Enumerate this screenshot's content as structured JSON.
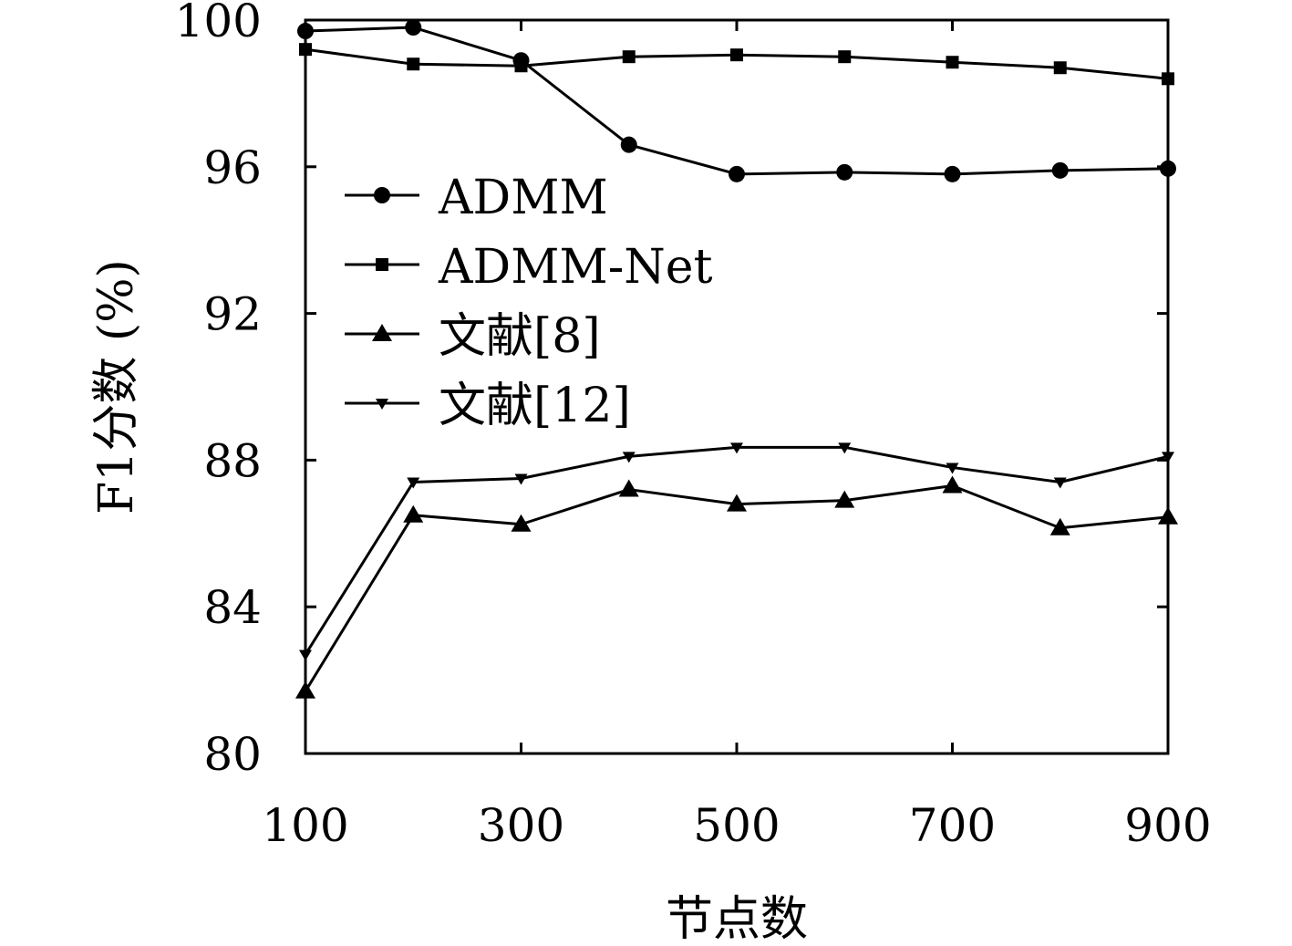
{
  "chart_data": {
    "type": "line",
    "title": "",
    "xlabel": "节点数",
    "ylabel": "F1分数 (%)",
    "xlim": [
      100,
      900
    ],
    "ylim": [
      80,
      100
    ],
    "xticks": [
      100,
      300,
      500,
      700,
      900
    ],
    "yticks": [
      80,
      84,
      88,
      92,
      96,
      100
    ],
    "grid": false,
    "legend_position": "center-left",
    "x": [
      100,
      200,
      300,
      400,
      500,
      600,
      700,
      800,
      900
    ],
    "series": [
      {
        "name": "ADMM",
        "marker": "circle",
        "values": [
          99.7,
          99.8,
          98.9,
          96.6,
          95.8,
          95.85,
          95.8,
          95.9,
          95.95
        ]
      },
      {
        "name": "ADMM-Net",
        "marker": "square",
        "values": [
          99.2,
          98.8,
          98.75,
          99.0,
          99.05,
          99.0,
          98.85,
          98.7,
          98.4
        ]
      },
      {
        "name": "文献[8]",
        "marker": "triangle-up",
        "values": [
          81.7,
          86.5,
          86.25,
          87.2,
          86.8,
          86.9,
          87.3,
          86.15,
          86.45
        ]
      },
      {
        "name": "文献[12]",
        "marker": "triangle-down",
        "values": [
          82.7,
          87.4,
          87.5,
          88.1,
          88.35,
          88.35,
          87.8,
          87.4,
          88.1
        ]
      }
    ]
  },
  "colors": {
    "line": "#000000",
    "background": "#ffffff"
  }
}
